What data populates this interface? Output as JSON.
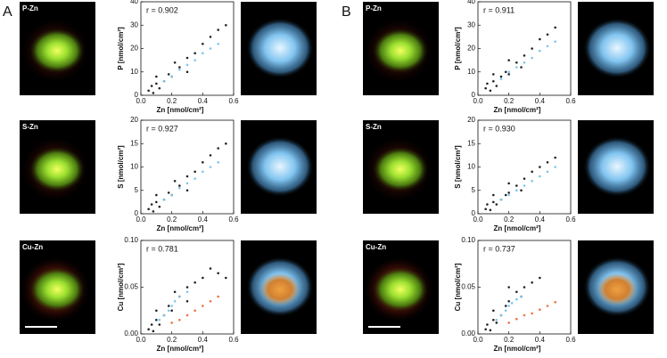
{
  "panel_labels": [
    "A",
    "B"
  ],
  "image_labels": [
    "P-Zn",
    "S-Zn",
    "Cu-Zn",
    "P-Zn",
    "S-Zn",
    "Cu-Zn"
  ],
  "chart_data": [
    {
      "type": "scatter",
      "annotation": "r = 0.902",
      "x_label": "Zn [nmol/cm²]",
      "y_label": "P [nmol/cm²]",
      "xlim": [
        0,
        0.6
      ],
      "xticks": [
        {
          "value": 0,
          "label": "0.0"
        },
        {
          "value": 0.2,
          "label": "0.2"
        },
        {
          "value": 0.4,
          "label": "0.4"
        },
        {
          "value": 0.6,
          "label": "0.6"
        }
      ],
      "ylim": [
        0,
        40
      ],
      "yticks": [
        0,
        10,
        20,
        30,
        40
      ],
      "series": [
        {
          "color": "#222222",
          "x": [
            0.05,
            0.07,
            0.08,
            0.1,
            0.12,
            0.15,
            0.18,
            0.2,
            0.25,
            0.3,
            0.35,
            0.4,
            0.45,
            0.5,
            0.55,
            0.1,
            0.3,
            0.22
          ],
          "values": [
            2,
            4,
            1,
            5,
            3,
            6,
            9,
            8,
            12,
            16,
            18,
            22,
            25,
            28,
            30,
            8,
            10,
            14
          ]
        },
        {
          "color": "#7cc4ee",
          "x": [
            0.15,
            0.2,
            0.25,
            0.3,
            0.35,
            0.4,
            0.45,
            0.5
          ],
          "values": [
            6,
            8,
            11,
            13,
            15,
            18,
            20,
            22
          ]
        }
      ]
    },
    {
      "type": "scatter",
      "annotation": "r = 0.927",
      "x_label": "Zn [nmol/cm²]",
      "y_label": "S [nmol/cm²]",
      "xlim": [
        0,
        0.6
      ],
      "xticks": [
        {
          "value": 0,
          "label": "0.0"
        },
        {
          "value": 0.2,
          "label": "0.2"
        },
        {
          "value": 0.4,
          "label": "0.4"
        },
        {
          "value": 0.6,
          "label": "0.6"
        }
      ],
      "ylim": [
        0,
        20
      ],
      "yticks": [
        0,
        5,
        10,
        15,
        20
      ],
      "series": [
        {
          "color": "#222222",
          "x": [
            0.05,
            0.07,
            0.08,
            0.1,
            0.12,
            0.15,
            0.18,
            0.2,
            0.25,
            0.3,
            0.35,
            0.4,
            0.45,
            0.5,
            0.55,
            0.1,
            0.3,
            0.22
          ],
          "values": [
            1,
            2,
            0.5,
            2.5,
            1.5,
            3,
            4.5,
            4,
            6,
            8,
            9,
            11,
            12.5,
            14,
            15,
            4,
            5,
            7
          ]
        },
        {
          "color": "#7cc4ee",
          "x": [
            0.15,
            0.2,
            0.25,
            0.3,
            0.35,
            0.4,
            0.45,
            0.5
          ],
          "values": [
            3,
            4,
            5.5,
            6.5,
            7.5,
            9,
            10,
            11
          ]
        }
      ]
    },
    {
      "type": "scatter",
      "annotation": "r = 0.781",
      "x_label": "Zn [nmol/cm²]",
      "y_label": "Cu [nmol/cm²]",
      "xlim": [
        0,
        0.6
      ],
      "xticks": [
        {
          "value": 0,
          "label": "0.0"
        },
        {
          "value": 0.2,
          "label": "0.2"
        },
        {
          "value": 0.4,
          "label": "0.4"
        },
        {
          "value": 0.6,
          "label": "0.6"
        }
      ],
      "ylim": [
        0,
        0.1
      ],
      "yticks": [
        {
          "value": 0,
          "label": "0.00"
        },
        {
          "value": 0.05,
          "label": "0.05"
        },
        {
          "value": 0.1,
          "label": "0.10"
        }
      ],
      "series": [
        {
          "color": "#222222",
          "x": [
            0.05,
            0.07,
            0.08,
            0.1,
            0.12,
            0.15,
            0.18,
            0.2,
            0.25,
            0.3,
            0.35,
            0.4,
            0.45,
            0.5,
            0.55,
            0.1,
            0.3,
            0.22
          ],
          "values": [
            0.005,
            0.01,
            0.003,
            0.015,
            0.01,
            0.02,
            0.03,
            0.025,
            0.04,
            0.05,
            0.055,
            0.06,
            0.07,
            0.065,
            0.06,
            0.025,
            0.035,
            0.045
          ]
        },
        {
          "color": "#7cc4ee",
          "x": [
            0.12,
            0.15,
            0.18,
            0.2,
            0.22,
            0.25,
            0.3
          ],
          "values": [
            0.015,
            0.02,
            0.025,
            0.03,
            0.035,
            0.04,
            0.045
          ]
        },
        {
          "color": "#f07040",
          "x": [
            0.2,
            0.25,
            0.3,
            0.35,
            0.4,
            0.45,
            0.5
          ],
          "values": [
            0.012,
            0.015,
            0.02,
            0.025,
            0.03,
            0.035,
            0.04
          ]
        }
      ]
    },
    {
      "type": "scatter",
      "annotation": "r = 0.911",
      "x_label": "Zn [nmol/cm²]",
      "y_label": "P [nmol/cm²]",
      "xlim": [
        0,
        0.6
      ],
      "xticks": [
        {
          "value": 0,
          "label": "0.0"
        },
        {
          "value": 0.2,
          "label": "0.2"
        },
        {
          "value": 0.4,
          "label": "0.4"
        },
        {
          "value": 0.6,
          "label": "0.6"
        }
      ],
      "ylim": [
        0,
        40
      ],
      "yticks": [
        0,
        10,
        20,
        30,
        40
      ],
      "series": [
        {
          "color": "#222222",
          "x": [
            0.05,
            0.06,
            0.08,
            0.1,
            0.12,
            0.15,
            0.18,
            0.2,
            0.25,
            0.3,
            0.35,
            0.4,
            0.45,
            0.5,
            0.1,
            0.28,
            0.2
          ],
          "values": [
            3,
            5,
            2,
            6,
            4,
            8,
            10,
            9,
            14,
            17,
            20,
            24,
            26,
            29,
            9,
            12,
            15
          ]
        },
        {
          "color": "#7cc4ee",
          "x": [
            0.15,
            0.2,
            0.25,
            0.3,
            0.35,
            0.4,
            0.45,
            0.5
          ],
          "values": [
            7,
            10,
            12,
            14,
            16,
            19,
            21,
            23
          ]
        }
      ]
    },
    {
      "type": "scatter",
      "annotation": "r = 0.930",
      "x_label": "Zn [nmol/cm²]",
      "y_label": "S [nmol/cm²]",
      "xlim": [
        0,
        0.6
      ],
      "xticks": [
        {
          "value": 0,
          "label": "0.0"
        },
        {
          "value": 0.2,
          "label": "0.2"
        },
        {
          "value": 0.4,
          "label": "0.4"
        },
        {
          "value": 0.6,
          "label": "0.6"
        }
      ],
      "ylim": [
        0,
        20
      ],
      "yticks": [
        0,
        5,
        10,
        15,
        20
      ],
      "series": [
        {
          "color": "#222222",
          "x": [
            0.05,
            0.06,
            0.08,
            0.1,
            0.12,
            0.15,
            0.18,
            0.2,
            0.25,
            0.3,
            0.35,
            0.4,
            0.45,
            0.5,
            0.1,
            0.28,
            0.2
          ],
          "values": [
            1,
            2,
            0.8,
            2.5,
            2,
            3,
            4,
            4.5,
            6,
            7.5,
            9,
            10,
            11,
            12,
            4,
            5,
            6.5
          ]
        },
        {
          "color": "#7cc4ee",
          "x": [
            0.15,
            0.2,
            0.25,
            0.3,
            0.35,
            0.4,
            0.45,
            0.5
          ],
          "values": [
            3,
            4,
            5,
            6,
            7,
            8,
            9,
            10
          ]
        }
      ]
    },
    {
      "type": "scatter",
      "annotation": "r = 0.737",
      "x_label": "Zn [nmol/cm²]",
      "y_label": "Cu [nmol/cm²]",
      "xlim": [
        0,
        0.6
      ],
      "xticks": [
        {
          "value": 0,
          "label": "0.0"
        },
        {
          "value": 0.2,
          "label": "0.2"
        },
        {
          "value": 0.4,
          "label": "0.4"
        },
        {
          "value": 0.6,
          "label": "0.6"
        }
      ],
      "ylim": [
        0,
        0.1
      ],
      "yticks": [
        {
          "value": 0,
          "label": "0.00"
        },
        {
          "value": 0.05,
          "label": "0.05"
        },
        {
          "value": 0.1,
          "label": "0.10"
        }
      ],
      "series": [
        {
          "color": "#222222",
          "x": [
            0.05,
            0.06,
            0.08,
            0.1,
            0.12,
            0.15,
            0.18,
            0.2,
            0.25,
            0.3,
            0.35,
            0.4,
            0.1,
            0.28,
            0.2
          ],
          "values": [
            0.005,
            0.01,
            0.004,
            0.015,
            0.012,
            0.02,
            0.03,
            0.035,
            0.045,
            0.05,
            0.055,
            0.06,
            0.025,
            0.04,
            0.05
          ]
        },
        {
          "color": "#7cc4ee",
          "x": [
            0.12,
            0.15,
            0.18,
            0.2,
            0.22,
            0.25,
            0.28
          ],
          "values": [
            0.015,
            0.02,
            0.025,
            0.03,
            0.033,
            0.037,
            0.04
          ]
        },
        {
          "color": "#f07040",
          "x": [
            0.2,
            0.25,
            0.3,
            0.35,
            0.4,
            0.45,
            0.5
          ],
          "values": [
            0.012,
            0.016,
            0.02,
            0.022,
            0.026,
            0.03,
            0.034
          ]
        }
      ]
    }
  ]
}
